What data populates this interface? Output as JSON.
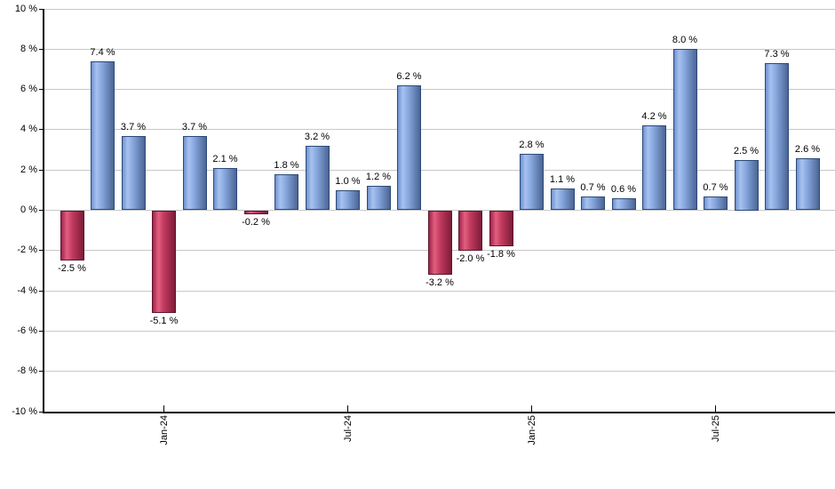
{
  "chart_data": {
    "type": "bar",
    "title": "",
    "description": "Monthly percent returns bar chart, positive months blue, negative months red",
    "values": [
      -2.5,
      7.4,
      3.7,
      -5.1,
      3.7,
      2.1,
      -0.2,
      1.8,
      3.2,
      1.0,
      1.2,
      6.2,
      -3.2,
      -2.0,
      -1.8,
      2.8,
      1.1,
      0.7,
      0.6,
      4.2,
      8.0,
      0.7,
      2.5,
      7.3,
      2.6
    ],
    "bar_labels": [
      "-2.5 %",
      "7.4 %",
      "3.7 %",
      "-5.1 %",
      "3.7 %",
      "2.1 %",
      "-0.2 %",
      "1.8 %",
      "3.2 %",
      "1.0 %",
      "1.2 %",
      "6.2 %",
      "-3.2 %",
      "-2.0 %",
      "-1.8 %",
      "2.8 %",
      "1.1 %",
      "0.7 %",
      "0.6 %",
      "4.2 %",
      "8.0 %",
      "0.7 %",
      "2.5 %",
      "7.3 %",
      "2.6 %"
    ],
    "x_ticks": [
      {
        "label": "Jan-24",
        "bar_index": 3
      },
      {
        "label": "Jul-24",
        "bar_index": 9
      },
      {
        "label": "Jan-25",
        "bar_index": 15
      },
      {
        "label": "Jul-25",
        "bar_index": 21
      }
    ],
    "y_ticks": [
      {
        "value": 10,
        "label": "10 %"
      },
      {
        "value": 8,
        "label": "8 %"
      },
      {
        "value": 6,
        "label": "6 %"
      },
      {
        "value": 4,
        "label": "4 %"
      },
      {
        "value": 2,
        "label": "2 %"
      },
      {
        "value": 0,
        "label": "0 %"
      },
      {
        "value": -2,
        "label": "-2 %"
      },
      {
        "value": -4,
        "label": "-4 %"
      },
      {
        "value": -6,
        "label": "-6 %"
      },
      {
        "value": -8,
        "label": "-8 %"
      },
      {
        "value": -10,
        "label": "-10 %"
      }
    ],
    "ylim": [
      -10,
      10
    ],
    "grid": true,
    "legend": "none",
    "colors": {
      "positive_gradient": [
        "#6d92cf",
        "#a8c2ef",
        "#89a9e0",
        "#4b6594"
      ],
      "positive_border": "#2c4a78",
      "negative_gradient": [
        "#a0234a",
        "#e25f80",
        "#c23a5e",
        "#7c1c39"
      ],
      "negative_border": "#5f142e",
      "gridline": "#c8c8c8",
      "axis": "#000000",
      "label": "#000000",
      "background": "#ffffff"
    }
  }
}
